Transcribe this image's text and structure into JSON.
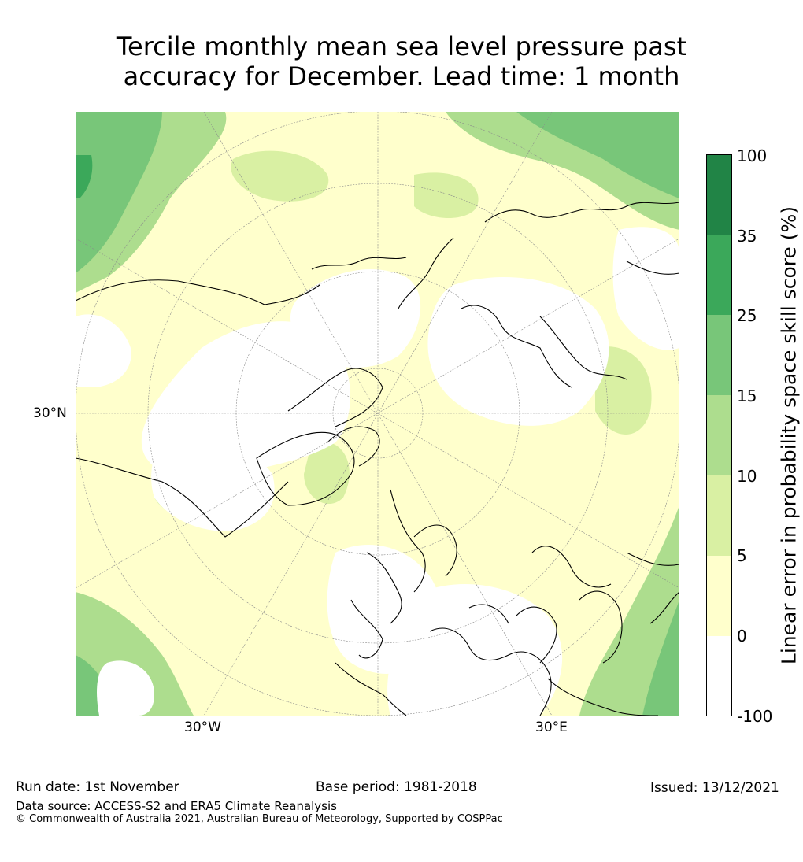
{
  "title": {
    "line1": "Tercile monthly mean sea level pressure past",
    "line2": "accuracy for December. Lead time: 1 month"
  },
  "map": {
    "labels": {
      "lat_30n": "30°N",
      "lon_30w": "30°W",
      "lon_30e": "30°E"
    }
  },
  "colorbar": {
    "label": "Linear error in probability space skill score (%)",
    "ticks": [
      "100",
      "35",
      "25",
      "15",
      "10",
      "5",
      "0",
      "-100"
    ],
    "colors": [
      "#218446",
      "#3ba85a",
      "#78c679",
      "#addd8e",
      "#d9f0a3",
      "#ffffcc",
      "#ffffff"
    ]
  },
  "footer": {
    "run_date": "Run date: 1st November",
    "base_period": "Base period: 1981-2018",
    "issued": "Issued: 13/12/2021",
    "data_source": "Data source: ACCESS-S2 and ERA5 Climate Reanalysis",
    "copyright": "© Commonwealth of Australia 2021, Australian Bureau of Meteorology, Supported by COSPPac"
  }
}
